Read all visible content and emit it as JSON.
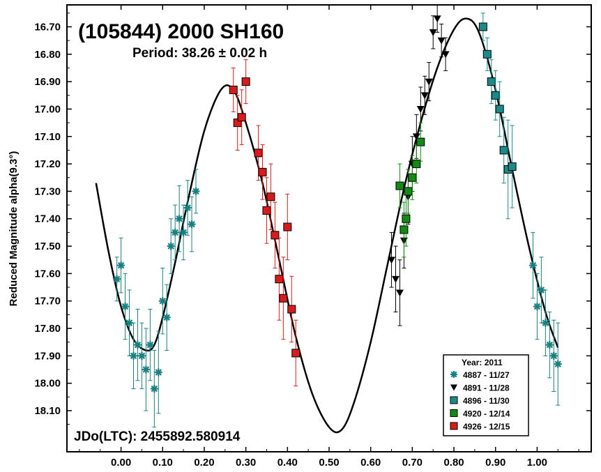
{
  "chart_data": {
    "type": "scatter",
    "title": "(105844) 2000 SH160",
    "subtitle": "Period: 38.26 ± 0.02 h",
    "epoch_label": "JDo(LTC): 2455892.580914",
    "xlabel": "",
    "ylabel": "Reduced Magnitude alpha(9.3°)",
    "xlim": [
      -0.13,
      1.13
    ],
    "ylim": [
      18.25,
      16.62
    ],
    "y_inverted": true,
    "x_ticks": [
      "0.00",
      "0.10",
      "0.20",
      "0.30",
      "0.40",
      "0.50",
      "0.60",
      "0.70",
      "0.80",
      "0.90",
      "1.00"
    ],
    "x_tick_values": [
      0.0,
      0.1,
      0.2,
      0.3,
      0.4,
      0.5,
      0.6,
      0.7,
      0.8,
      0.9,
      1.0
    ],
    "y_ticks": [
      "16.70",
      "16.80",
      "16.90",
      "17.00",
      "17.10",
      "17.20",
      "17.30",
      "17.40",
      "17.50",
      "17.60",
      "17.70",
      "17.80",
      "17.90",
      "18.00",
      "18.10"
    ],
    "y_tick_values": [
      16.7,
      16.8,
      16.9,
      17.0,
      17.1,
      17.2,
      17.3,
      17.4,
      17.5,
      17.6,
      17.7,
      17.8,
      17.9,
      18.0,
      18.1
    ],
    "legend": {
      "title": "Year: 2011",
      "position": "bottom-right",
      "entries": [
        {
          "label": "4887 - 11/27",
          "marker": "asterisk",
          "color": "#1a7f7f"
        },
        {
          "label": "4891 - 11/28",
          "marker": "triangle-down",
          "color": "#000000"
        },
        {
          "label": "4896 - 11/30",
          "marker": "square",
          "color": "#1a8a8a"
        },
        {
          "label": "4920 - 12/14",
          "marker": "square",
          "color": "#138a13"
        },
        {
          "label": "4926 - 12/15",
          "marker": "square",
          "color": "#d81b1b"
        }
      ]
    },
    "fit_curve": {
      "x": [
        -0.06,
        -0.03,
        0.0,
        0.03,
        0.06,
        0.08,
        0.1,
        0.13,
        0.16,
        0.2,
        0.24,
        0.27,
        0.3,
        0.34,
        0.38,
        0.42,
        0.46,
        0.5,
        0.53,
        0.56,
        0.6,
        0.64,
        0.68,
        0.72,
        0.76,
        0.8,
        0.83,
        0.86,
        0.9,
        0.94,
        0.98,
        1.02,
        1.05
      ],
      "y": [
        17.27,
        17.52,
        17.72,
        17.84,
        17.88,
        17.86,
        17.76,
        17.56,
        17.34,
        17.08,
        16.93,
        16.93,
        17.05,
        17.27,
        17.55,
        17.83,
        18.04,
        18.16,
        18.17,
        18.07,
        17.85,
        17.57,
        17.29,
        17.05,
        16.85,
        16.71,
        16.67,
        16.72,
        16.93,
        17.22,
        17.5,
        17.74,
        17.87
      ]
    },
    "series": [
      {
        "name": "4887 - 11/27",
        "marker": "asterisk",
        "color": "#1a7f7f",
        "x": [
          -0.01,
          0.0,
          0.01,
          0.02,
          0.03,
          0.04,
          0.05,
          0.06,
          0.07,
          0.08,
          0.09,
          0.1,
          0.11,
          0.12,
          0.13,
          0.14,
          0.15,
          0.16,
          0.17,
          0.18,
          0.99,
          1.0,
          1.01,
          1.02,
          1.03,
          1.04,
          1.05
        ],
        "y": [
          17.62,
          17.57,
          17.72,
          17.78,
          17.9,
          17.86,
          17.9,
          17.95,
          17.86,
          18.02,
          17.96,
          17.7,
          17.76,
          17.5,
          17.45,
          17.4,
          17.45,
          17.36,
          17.42,
          17.3,
          17.57,
          17.72,
          17.66,
          17.78,
          17.86,
          17.9,
          17.93
        ],
        "err": [
          0.08,
          0.1,
          0.12,
          0.12,
          0.12,
          0.13,
          0.12,
          0.15,
          0.13,
          0.14,
          0.15,
          0.12,
          0.12,
          0.1,
          0.1,
          0.12,
          0.1,
          0.1,
          0.1,
          0.08,
          0.12,
          0.12,
          0.12,
          0.12,
          0.12,
          0.13,
          0.15
        ]
      },
      {
        "name": "4891 - 11/28",
        "marker": "triangle-down",
        "color": "#000000",
        "x": [
          0.65,
          0.66,
          0.67,
          0.68,
          0.69,
          0.7,
          0.71,
          0.72,
          0.73,
          0.74,
          0.75,
          0.76,
          0.77,
          0.78
        ],
        "y": [
          17.55,
          17.62,
          17.67,
          17.48,
          17.32,
          17.2,
          17.1,
          17.0,
          16.95,
          16.9,
          16.72,
          16.67,
          16.75,
          16.8
        ],
        "err": [
          0.1,
          0.12,
          0.12,
          0.1,
          0.1,
          0.1,
          0.08,
          0.08,
          0.07,
          0.07,
          0.06,
          0.05,
          0.06,
          0.06
        ]
      },
      {
        "name": "4896 - 11/30",
        "marker": "square",
        "color": "#1a8a8a",
        "x": [
          0.87,
          0.88,
          0.89,
          0.9,
          0.91,
          0.92,
          0.93,
          0.94
        ],
        "y": [
          16.7,
          16.8,
          16.9,
          16.95,
          17.0,
          17.15,
          17.22,
          17.21
        ],
        "err": [
          0.05,
          0.06,
          0.08,
          0.09,
          0.1,
          0.12,
          0.18,
          0.15
        ]
      },
      {
        "name": "4920 - 12/14",
        "marker": "square",
        "color": "#138a13",
        "x": [
          0.67,
          0.68,
          0.685,
          0.69,
          0.7,
          0.71,
          0.72
        ],
        "y": [
          17.28,
          17.44,
          17.4,
          17.3,
          17.25,
          17.2,
          17.12
        ],
        "err": [
          0.08,
          0.1,
          0.1,
          0.08,
          0.08,
          0.07,
          0.07
        ]
      },
      {
        "name": "4926 - 12/15",
        "marker": "square",
        "color": "#d81b1b",
        "x": [
          0.27,
          0.28,
          0.29,
          0.3,
          0.33,
          0.34,
          0.35,
          0.36,
          0.37,
          0.38,
          0.39,
          0.4,
          0.41,
          0.42
        ],
        "y": [
          16.93,
          17.05,
          17.03,
          16.9,
          17.16,
          17.23,
          17.37,
          17.32,
          17.46,
          17.62,
          17.69,
          17.43,
          17.73,
          17.89
        ],
        "err": [
          0.08,
          0.1,
          0.1,
          0.08,
          0.1,
          0.1,
          0.12,
          0.12,
          0.12,
          0.15,
          0.15,
          0.12,
          0.12,
          0.12
        ]
      }
    ]
  }
}
